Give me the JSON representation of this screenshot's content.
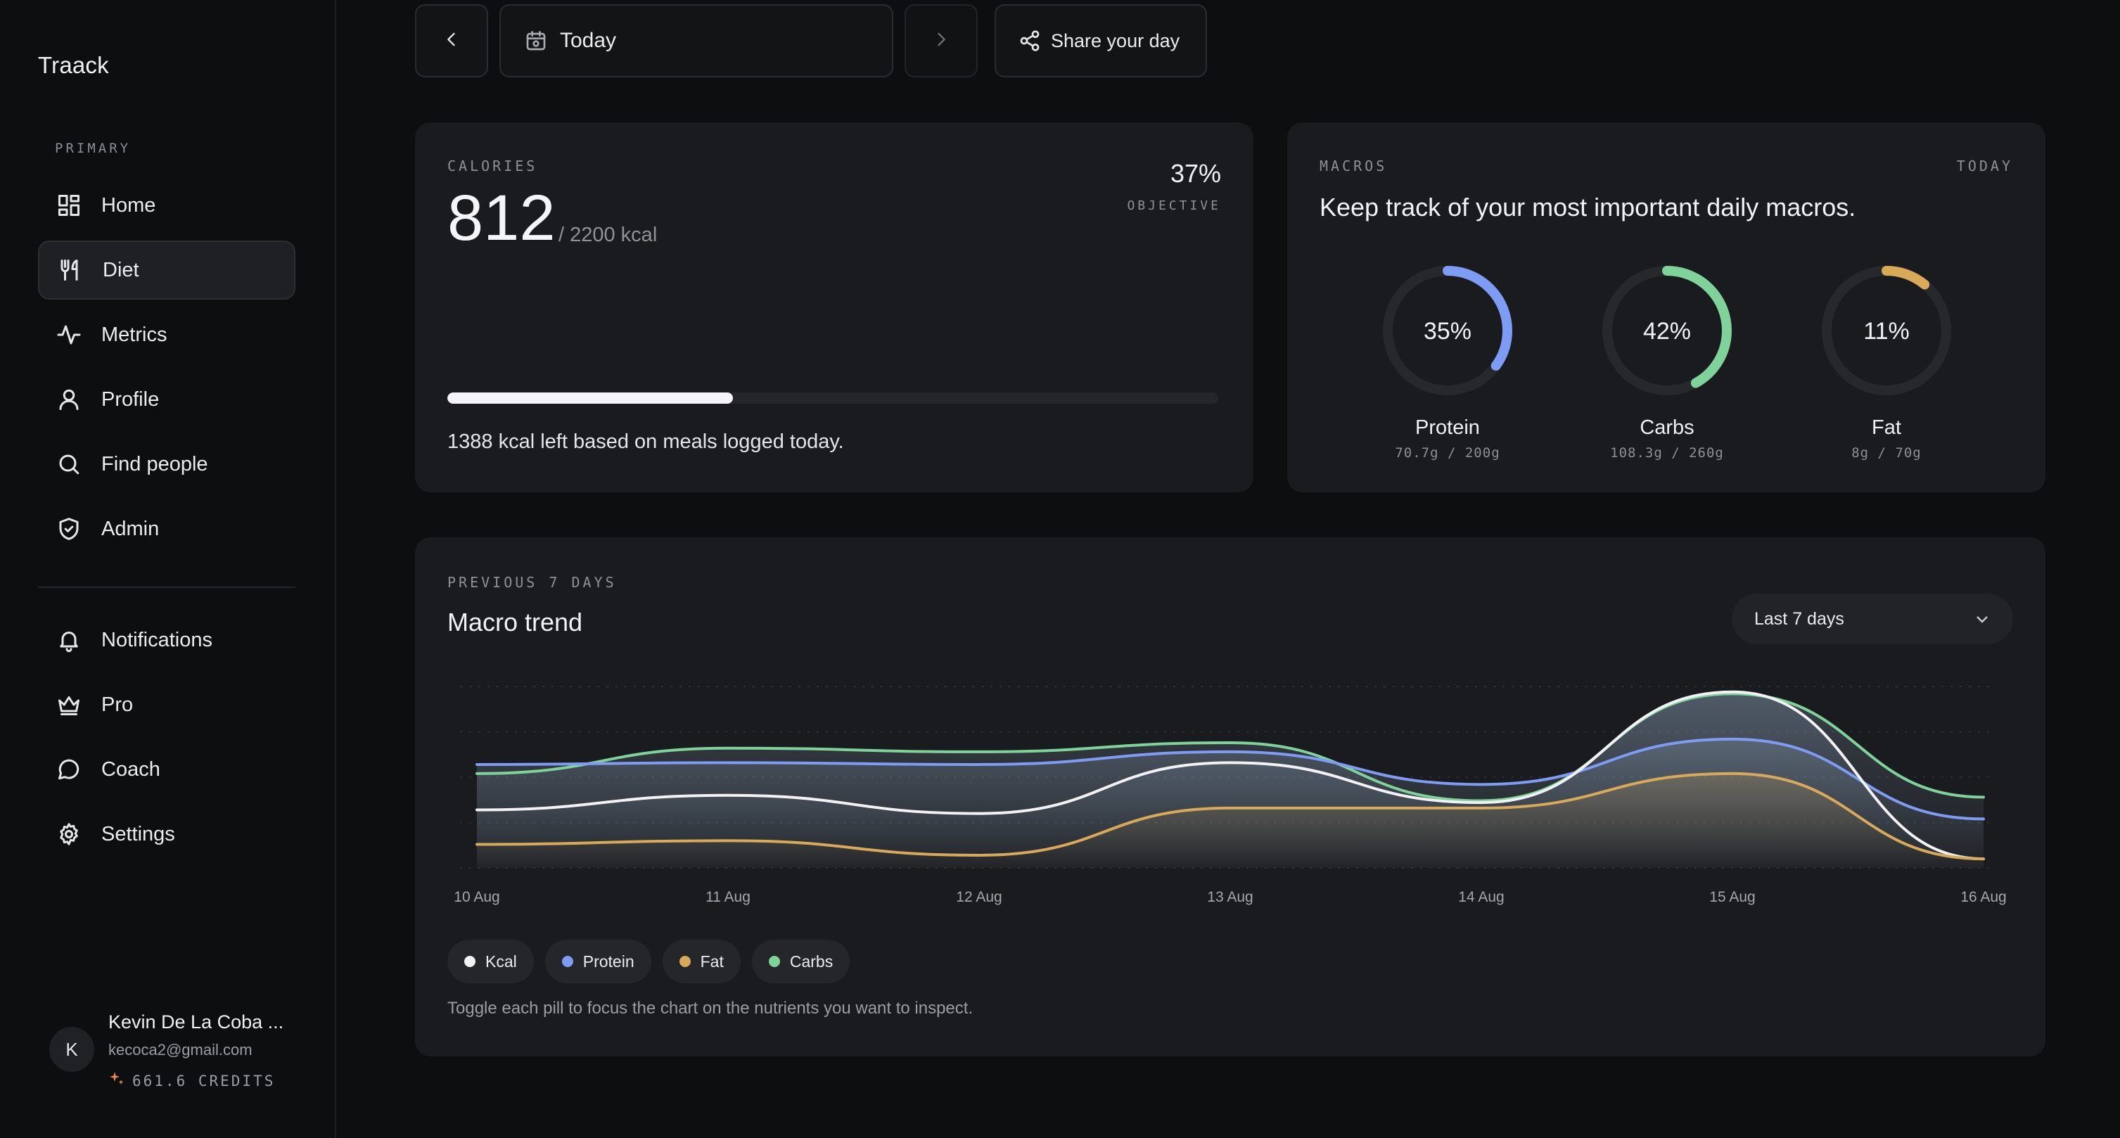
{
  "app": {
    "brand": "Traack"
  },
  "sidebar": {
    "section_label": "PRIMARY",
    "primary": [
      {
        "label": "Home",
        "icon": "home-grid-icon"
      },
      {
        "label": "Diet",
        "icon": "fork-knife-icon",
        "active": true
      },
      {
        "label": "Metrics",
        "icon": "pulse-icon"
      },
      {
        "label": "Profile",
        "icon": "user-icon"
      },
      {
        "label": "Find people",
        "icon": "search-icon"
      },
      {
        "label": "Admin",
        "icon": "shield-icon"
      }
    ],
    "secondary": [
      {
        "label": "Notifications",
        "icon": "bell-icon"
      },
      {
        "label": "Pro",
        "icon": "crown-icon"
      },
      {
        "label": "Coach",
        "icon": "chat-bubble-icon"
      },
      {
        "label": "Settings",
        "icon": "gear-icon"
      }
    ],
    "user": {
      "initial": "K",
      "name": "Kevin De La Coba ...",
      "email": "kecoca2@gmail.com",
      "credits": "661.6 CREDITS"
    }
  },
  "topbar": {
    "date_label": "Today",
    "share_label": "Share your day"
  },
  "calories": {
    "eyebrow": "CALORIES",
    "value": "812",
    "target": "/ 2200 kcal",
    "percent": "37%",
    "percent_label": "OBJECTIVE",
    "progress": 0.37,
    "note": "1388 kcal left based on meals logged today."
  },
  "macros": {
    "eyebrow": "MACROS",
    "period": "TODAY",
    "title": "Keep track of your most important daily macros.",
    "items": [
      {
        "name": "Protein",
        "percent": "35%",
        "value": 0.35,
        "detail": "70.7g / 200g",
        "color": "#7f9cf5"
      },
      {
        "name": "Carbs",
        "percent": "42%",
        "value": 0.42,
        "detail": "108.3g / 260g",
        "color": "#7fd39a"
      },
      {
        "name": "Fat",
        "percent": "11%",
        "value": 0.11,
        "detail": "8g / 70g",
        "color": "#d9a95a"
      }
    ]
  },
  "trend": {
    "eyebrow": "PREVIOUS 7 DAYS",
    "title": "Macro trend",
    "range_select": "Last 7 days",
    "pills": [
      {
        "label": "Kcal",
        "color": "#f2f2f4"
      },
      {
        "label": "Protein",
        "color": "#7f9cf5"
      },
      {
        "label": "Fat",
        "color": "#d9a95a"
      },
      {
        "label": "Carbs",
        "color": "#7fd39a"
      }
    ],
    "note": "Toggle each pill to focus the chart on the nutrients you want to inspect."
  },
  "chart_data": {
    "type": "area",
    "categories": [
      "10 Aug",
      "11 Aug",
      "12 Aug",
      "13 Aug",
      "14 Aug",
      "15 Aug",
      "16 Aug"
    ],
    "ylim": [
      0,
      100
    ],
    "grid": true,
    "series": [
      {
        "name": "Carbs",
        "color": "#7fd39a",
        "values": [
          52,
          66,
          64,
          69,
          37,
          96,
          39
        ]
      },
      {
        "name": "Protein",
        "color": "#7f9cf5",
        "values": [
          57,
          58,
          57,
          64,
          46,
          71,
          27
        ]
      },
      {
        "name": "Kcal",
        "color": "#f2f2f4",
        "values": [
          32,
          40,
          30,
          58,
          36,
          97,
          5
        ]
      },
      {
        "name": "Fat",
        "color": "#d9a95a",
        "values": [
          13,
          15,
          7,
          33,
          33,
          52,
          5
        ]
      }
    ]
  }
}
